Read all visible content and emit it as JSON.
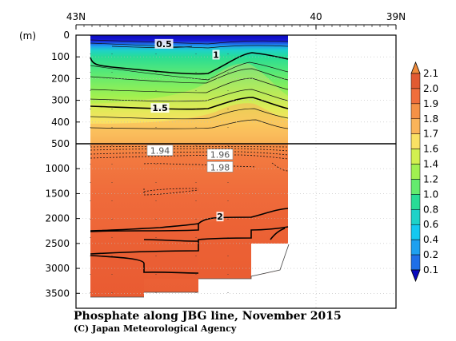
{
  "chart_data": {
    "type": "heatmap",
    "title": "Phosphate along JBG line, November 2015",
    "credit": "(C) Japan Meteorological Agency",
    "ylabel": "(m)",
    "x_axis": {
      "ticks": [
        {
          "value": 43,
          "label": "43N"
        },
        {
          "value": 40,
          "label": "40"
        },
        {
          "value": 39,
          "label": "39N"
        }
      ],
      "range": [
        43,
        39
      ]
    },
    "y_axis_upper": {
      "range": [
        0,
        500
      ],
      "ticks": [
        {
          "value": 0,
          "label": "0"
        },
        {
          "value": 100,
          "label": "100"
        },
        {
          "value": 200,
          "label": "200"
        },
        {
          "value": 300,
          "label": "300"
        },
        {
          "value": 400,
          "label": "400"
        },
        {
          "value": 500,
          "label": "500"
        }
      ]
    },
    "y_axis_lower": {
      "range": [
        500,
        3800
      ],
      "ticks": [
        {
          "value": 1000,
          "label": "1000"
        },
        {
          "value": 1500,
          "label": "1500"
        },
        {
          "value": 2000,
          "label": "2000"
        },
        {
          "value": 2500,
          "label": "2500"
        },
        {
          "value": 3000,
          "label": "3000"
        },
        {
          "value": 3500,
          "label": "3500"
        }
      ]
    },
    "colorbar": {
      "levels": [
        {
          "value": 0.1,
          "label": "0.1",
          "color": "#1a1ad6"
        },
        {
          "value": 0.2,
          "label": "0.2",
          "color": "#1f6fe8"
        },
        {
          "value": 0.4,
          "label": "0.4",
          "color": "#1ea0f0"
        },
        {
          "value": 0.6,
          "label": "0.6",
          "color": "#14c8f0"
        },
        {
          "value": 0.8,
          "label": "0.8",
          "color": "#1ed2c8"
        },
        {
          "value": 1.0,
          "label": "1.0",
          "color": "#28dc96"
        },
        {
          "value": 1.2,
          "label": "1.2",
          "color": "#64eb6e"
        },
        {
          "value": 1.4,
          "label": "1.4",
          "color": "#a0f050"
        },
        {
          "value": 1.6,
          "label": "1.6",
          "color": "#d2f050"
        },
        {
          "value": 1.7,
          "label": "1.7",
          "color": "#fae164"
        },
        {
          "value": 1.8,
          "label": "1.8",
          "color": "#fab45a"
        },
        {
          "value": 1.9,
          "label": "1.9",
          "color": "#f59146"
        },
        {
          "value": 2.0,
          "label": "2.0",
          "color": "#f06e3c"
        },
        {
          "value": 2.1,
          "label": "2.1",
          "color": "#e15a32"
        }
      ],
      "over_color": "#f08c3c",
      "under_color": "#0a0abe"
    },
    "stations_lat": [
      42.82,
      42.55,
      42.0,
      41.5,
      41.1
    ],
    "contour_labels": [
      {
        "text": "0.5",
        "lat": 41.9,
        "depth": 40
      },
      {
        "text": "1",
        "lat": 41.25,
        "depth": 90
      },
      {
        "text": "1.5",
        "lat": 41.95,
        "depth": 335
      },
      {
        "text": "1.94",
        "lat": 41.95,
        "depth": 640
      },
      {
        "text": "1.96",
        "lat": 41.2,
        "depth": 720
      },
      {
        "text": "1.98",
        "lat": 41.2,
        "depth": 970
      },
      {
        "text": "2",
        "lat": 41.2,
        "depth": 1960
      }
    ]
  }
}
